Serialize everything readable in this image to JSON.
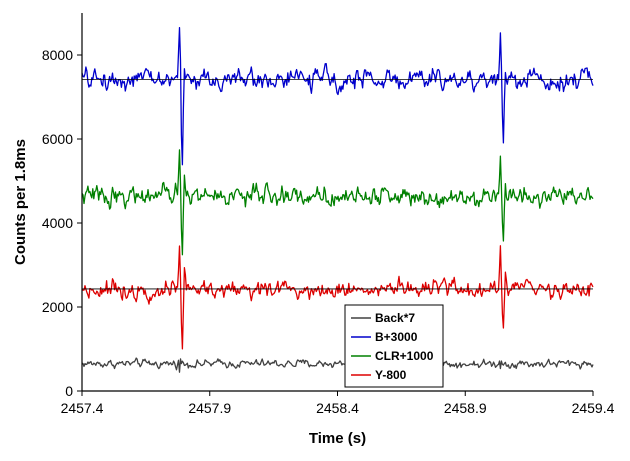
{
  "chart_data": {
    "type": "line",
    "title": "",
    "xlabel": "Time (s)",
    "ylabel": "Counts per 1.8ms",
    "xlim": [
      2457.4,
      2459.4
    ],
    "ylim": [
      0,
      9000
    ],
    "xticks": [
      2457.4,
      2457.9,
      2458.4,
      2458.9,
      2459.4
    ],
    "xtick_labels": [
      "2457.4",
      "2457.9",
      "2458.4",
      "2458.9",
      "2459.4"
    ],
    "yticks": [
      0,
      2000,
      4000,
      6000,
      8000
    ],
    "ytick_labels": [
      "0",
      "2000",
      "4000",
      "6000",
      "8000"
    ],
    "grid": false,
    "legend_position": "bottom-center",
    "series": [
      {
        "name": "Back*7",
        "color": "#404040",
        "baseline": 650,
        "noise": 90,
        "events": [
          {
            "t": 2457.775,
            "shape": [
              0,
              80,
              -200,
              120,
              0
            ]
          },
          {
            "t": 2459.03,
            "shape": [
              0,
              60,
              -120,
              60,
              0
            ]
          }
        ]
      },
      {
        "name": "B+3000",
        "color": "#0000cc",
        "baseline": 7420,
        "noise": 230,
        "events": [
          {
            "t": 2457.775,
            "shape": [
              0,
              600,
              1150,
              400,
              -1300,
              -2000,
              -600,
              300,
              0
            ]
          },
          {
            "t": 2459.03,
            "shape": [
              0,
              500,
              1100,
              300,
              -900,
              -1500,
              -500,
              200,
              0
            ]
          }
        ]
      },
      {
        "name": "CLR+1000",
        "color": "#008000",
        "baseline": 4650,
        "noise": 220,
        "events": [
          {
            "t": 2457.775,
            "shape": [
              0,
              500,
              1150,
              300,
              -800,
              -1450,
              -400,
              500,
              200,
              0
            ]
          },
          {
            "t": 2459.03,
            "shape": [
              0,
              400,
              900,
              250,
              -600,
              -1050,
              -300,
              300,
              0
            ]
          }
        ]
      },
      {
        "name": "Y-800",
        "color": "#dd0000",
        "baseline": 2430,
        "noise": 200,
        "events": [
          {
            "t": 2457.775,
            "shape": [
              0,
              400,
              1000,
              200,
              -800,
              -1400,
              -500,
              500,
              300,
              0
            ]
          },
          {
            "t": 2459.03,
            "shape": [
              0,
              500,
              1050,
              200,
              -600,
              -950,
              -300,
              400,
              200,
              0
            ]
          }
        ]
      }
    ],
    "reference_lines": [
      {
        "y": 7420,
        "color": "#000000"
      },
      {
        "y": 2430,
        "color": "#000000"
      }
    ]
  }
}
